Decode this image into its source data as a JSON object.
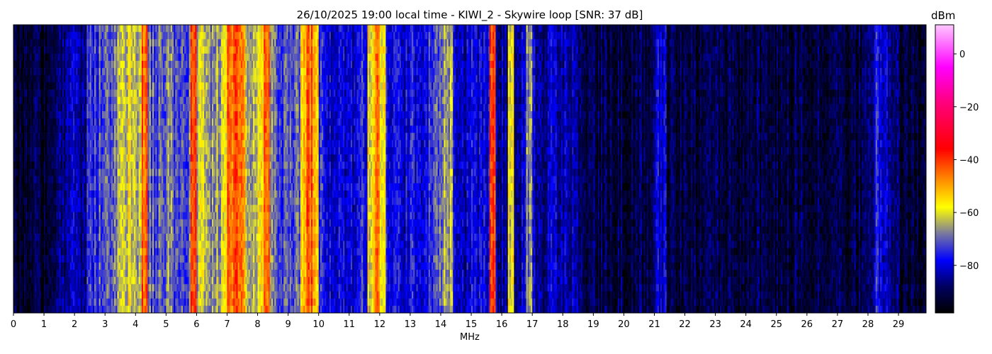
{
  "chart_data": {
    "type": "heatmap",
    "title": "26/10/2025 19:00 local time - KIWI_2 - Skywire loop [SNR: 37 dB]",
    "xlabel": "MHz",
    "ylabel": "",
    "xlim": [
      0,
      29.9
    ],
    "x_ticks": [
      "0",
      "1",
      "2",
      "3",
      "4",
      "5",
      "6",
      "7",
      "8",
      "9",
      "10",
      "11",
      "12",
      "13",
      "14",
      "15",
      "16",
      "17",
      "18",
      "19",
      "20",
      "21",
      "22",
      "23",
      "24",
      "25",
      "26",
      "27",
      "28",
      "29"
    ],
    "colorbar": {
      "label": "dBm",
      "range": [
        -98,
        11
      ],
      "ticks": [
        "0",
        "−20",
        "−40",
        "−60",
        "−80"
      ],
      "tick_values": [
        0,
        -20,
        -40,
        -60,
        -80
      ],
      "colormap_stops": [
        {
          "value": -98,
          "color": "#000000"
        },
        {
          "value": -88,
          "color": "#000060"
        },
        {
          "value": -78,
          "color": "#0000ff"
        },
        {
          "value": -68,
          "color": "#7878a0"
        },
        {
          "value": -58,
          "color": "#ffff00"
        },
        {
          "value": -48,
          "color": "#ff9000"
        },
        {
          "value": -36,
          "color": "#ff0000"
        },
        {
          "value": -18,
          "color": "#ff0080"
        },
        {
          "value": -5,
          "color": "#ff00ff"
        },
        {
          "value": 11,
          "color": "#ffc8ff"
        }
      ]
    },
    "bin_width_mhz": 0.2,
    "mean_level_dbm_per_bin": [
      -93,
      -93,
      -93,
      -93,
      -93,
      -93,
      -93,
      -86,
      -85,
      -84,
      -85,
      -84,
      -76,
      -74,
      -72,
      -70,
      -68,
      -62,
      -60,
      -61,
      -63,
      -45,
      -70,
      -72,
      -68,
      -66,
      -70,
      -72,
      -70,
      -42,
      -64,
      -62,
      -66,
      -64,
      -60,
      -45,
      -42,
      -46,
      -62,
      -64,
      -58,
      -42,
      -66,
      -70,
      -72,
      -74,
      -72,
      -54,
      -45,
      -52,
      -74,
      -78,
      -80,
      -80,
      -80,
      -80,
      -78,
      -76,
      -58,
      -48,
      -55,
      -78,
      -80,
      -80,
      -80,
      -78,
      -80,
      -78,
      -72,
      -70,
      -66,
      -64,
      -82,
      -84,
      -82,
      -80,
      -82,
      -80,
      -40,
      -84,
      -84,
      -60,
      -84,
      -82,
      -68,
      -84,
      -84,
      -84,
      -80,
      -84,
      -84,
      -84,
      -86,
      -91,
      -91,
      -91,
      -91,
      -91,
      -91,
      -91,
      -91,
      -91,
      -91,
      -91,
      -91,
      -80,
      -80,
      -91,
      -91,
      -91,
      -91,
      -91,
      -91,
      -91,
      -91,
      -91,
      -91,
      -91,
      -91,
      -91,
      -91,
      -91,
      -91,
      -91,
      -91,
      -91,
      -91,
      -91,
      -91,
      -91,
      -91,
      -91,
      -91,
      -91,
      -91,
      -91,
      -91,
      -91,
      -91,
      -91,
      -91,
      -76,
      -78,
      -84,
      -86,
      -92,
      -92,
      -92,
      -92,
      -92
    ]
  }
}
